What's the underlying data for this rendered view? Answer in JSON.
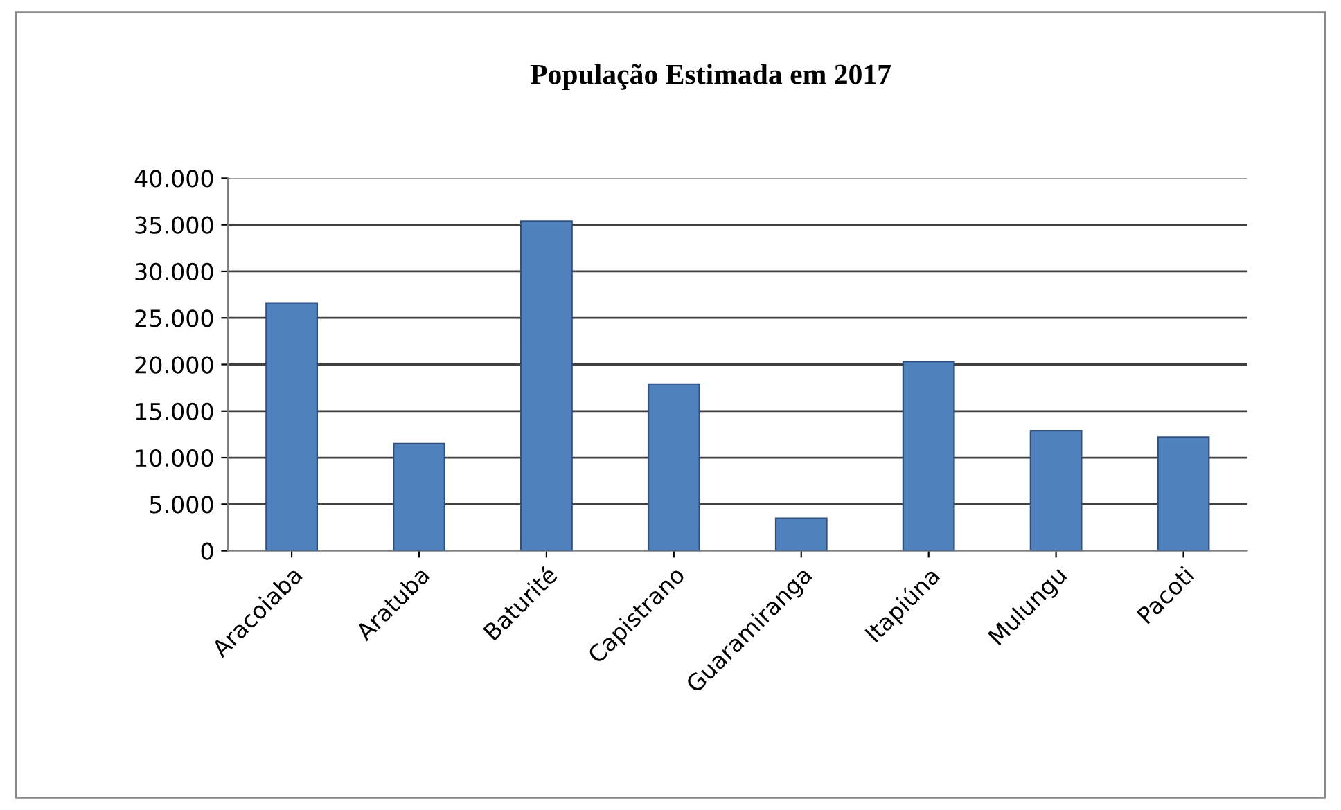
{
  "chart_data": {
    "type": "bar",
    "title": "População Estimada em 2017",
    "categories": [
      "Aracoiaba",
      "Aratuba",
      "Baturité",
      "Capistrano",
      "Guaramiranga",
      "Itapiúna",
      "Mulungu",
      "Pacoti"
    ],
    "values": [
      26600,
      11500,
      35400,
      17900,
      3500,
      20300,
      12900,
      12200
    ],
    "color": "#4f81bd",
    "ylim": [
      0,
      40000
    ],
    "yticks": [
      0,
      {
        "value": 5000,
        "label": "5.000"
      },
      {
        "value": 10000,
        "label": "10.000"
      },
      {
        "value": 15000,
        "label": "15.000"
      },
      {
        "value": 20000,
        "label": "20.000"
      },
      {
        "value": 25000,
        "label": "25.000"
      },
      {
        "value": 30000,
        "label": "30.000"
      },
      {
        "value": 35000,
        "label": "35.000"
      },
      {
        "value": 40000,
        "label": "40.000"
      }
    ],
    "grid": "y"
  }
}
